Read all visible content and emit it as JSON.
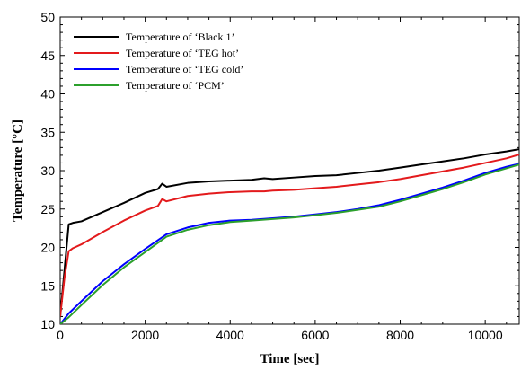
{
  "chart_data": {
    "type": "line",
    "xlabel": "Time [sec]",
    "ylabel": "Temperature [°C]",
    "xlim": [
      0,
      10800
    ],
    "ylim": [
      10,
      50
    ],
    "xticks": [
      0,
      2000,
      4000,
      6000,
      8000,
      10000
    ],
    "yticks": [
      10,
      15,
      20,
      25,
      30,
      35,
      40,
      45,
      50
    ],
    "grid": false,
    "legend_position": "top-left",
    "series": [
      {
        "name": "Temperature of ‘Black 1’",
        "color": "#000000",
        "x": [
          0,
          100,
          200,
          300,
          500,
          1000,
          1500,
          2000,
          2300,
          2400,
          2500,
          3000,
          3500,
          4000,
          4500,
          4800,
          5000,
          5500,
          6000,
          6500,
          7000,
          7500,
          8000,
          8500,
          9000,
          9500,
          10000,
          10500,
          10800
        ],
        "y": [
          11,
          17,
          23.0,
          23.2,
          23.4,
          24.6,
          25.8,
          27.1,
          27.6,
          28.3,
          27.9,
          28.4,
          28.6,
          28.7,
          28.8,
          29.0,
          28.9,
          29.1,
          29.3,
          29.4,
          29.7,
          30.0,
          30.4,
          30.8,
          31.2,
          31.6,
          32.1,
          32.5,
          32.8
        ]
      },
      {
        "name": "Temperature of ‘TEG hot’",
        "color": "#e31a1c",
        "x": [
          0,
          100,
          200,
          300,
          500,
          1000,
          1500,
          2000,
          2300,
          2400,
          2500,
          3000,
          3500,
          4000,
          4500,
          4800,
          5000,
          5500,
          6000,
          6500,
          7000,
          7500,
          8000,
          8500,
          9000,
          9500,
          10000,
          10500,
          10800
        ],
        "y": [
          11,
          16,
          19.5,
          19.9,
          20.4,
          22.0,
          23.5,
          24.8,
          25.4,
          26.3,
          26.0,
          26.7,
          27.0,
          27.2,
          27.3,
          27.3,
          27.4,
          27.5,
          27.7,
          27.9,
          28.2,
          28.5,
          28.9,
          29.4,
          29.9,
          30.4,
          31.0,
          31.6,
          32.1
        ]
      },
      {
        "name": "Temperature of ‘TEG cold’",
        "color": "#0000ff",
        "x": [
          0,
          200,
          500,
          1000,
          1500,
          2000,
          2500,
          3000,
          3500,
          4000,
          4500,
          5000,
          5500,
          6000,
          6500,
          7000,
          7500,
          8000,
          8500,
          9000,
          9500,
          10000,
          10500,
          10800
        ],
        "y": [
          10,
          11.4,
          13.0,
          15.6,
          17.8,
          19.8,
          21.7,
          22.6,
          23.2,
          23.5,
          23.6,
          23.8,
          24.0,
          24.3,
          24.6,
          25.0,
          25.5,
          26.2,
          27.0,
          27.8,
          28.7,
          29.7,
          30.5,
          30.9
        ]
      },
      {
        "name": "Temperature of ‘PCM’",
        "color": "#2ca02c",
        "x": [
          0,
          200,
          500,
          1000,
          1500,
          2000,
          2500,
          3000,
          3500,
          4000,
          4500,
          5000,
          5500,
          6000,
          6500,
          7000,
          7500,
          8000,
          8500,
          9000,
          9500,
          10000,
          10500,
          10800
        ],
        "y": [
          10,
          10.9,
          12.5,
          15.1,
          17.4,
          19.4,
          21.4,
          22.3,
          22.9,
          23.3,
          23.5,
          23.7,
          23.9,
          24.2,
          24.5,
          24.9,
          25.3,
          26.0,
          26.8,
          27.6,
          28.5,
          29.5,
          30.3,
          30.8
        ]
      }
    ]
  }
}
